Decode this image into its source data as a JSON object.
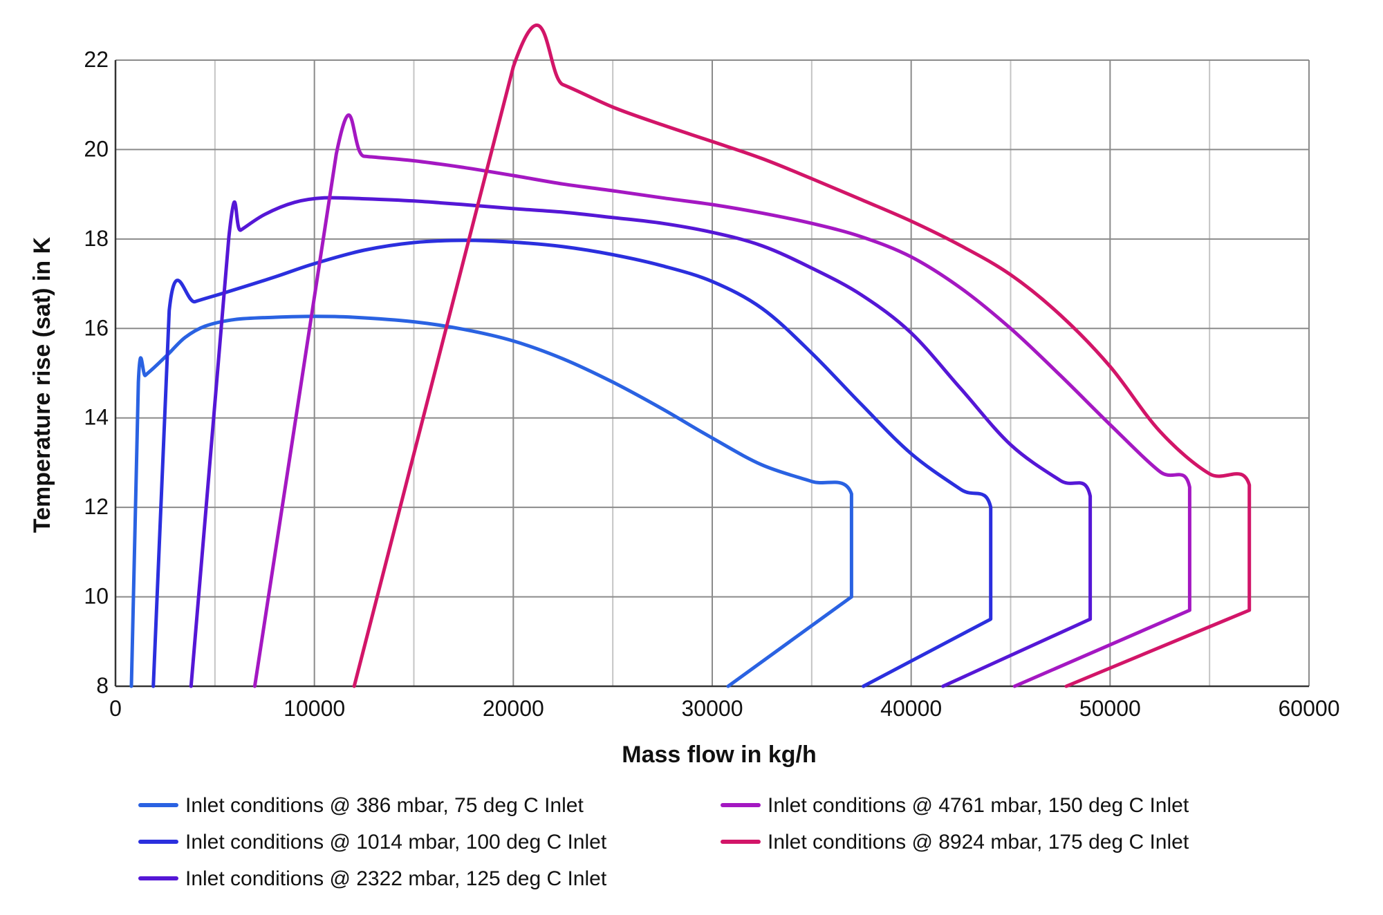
{
  "chart_data": {
    "type": "line",
    "title": "",
    "xlabel": "Mass flow in kg/h",
    "ylabel": "Temperature rise (sat) in K",
    "xlim": [
      0,
      60000
    ],
    "ylim": [
      8,
      22
    ],
    "x_ticks": [
      0,
      10000,
      20000,
      30000,
      40000,
      50000,
      60000
    ],
    "y_ticks": [
      8,
      10,
      12,
      14,
      16,
      18,
      20,
      22
    ],
    "x_minor_gridlines": [
      5000,
      15000,
      25000,
      35000,
      45000,
      55000
    ],
    "grid": true,
    "legend_placement": "bottom",
    "series": [
      {
        "name": "Inlet conditions @ 386 mbar, 75 deg C Inlet",
        "color": "#2a62e2",
        "points": [
          [
            800,
            8
          ],
          [
            1150,
            14.8
          ],
          [
            1500,
            14.95
          ],
          [
            2000,
            15.15
          ],
          [
            2700,
            15.45
          ],
          [
            3500,
            15.8
          ],
          [
            4500,
            16.05
          ],
          [
            6000,
            16.2
          ],
          [
            8000,
            16.25
          ],
          [
            10000,
            16.27
          ],
          [
            12000,
            16.25
          ],
          [
            15000,
            16.15
          ],
          [
            17500,
            15.98
          ],
          [
            20000,
            15.72
          ],
          [
            22500,
            15.32
          ],
          [
            25000,
            14.8
          ],
          [
            27500,
            14.2
          ],
          [
            30000,
            13.55
          ],
          [
            32500,
            12.95
          ],
          [
            35000,
            12.58
          ],
          [
            37000,
            12.3
          ],
          [
            37000,
            10
          ],
          [
            30800,
            8
          ]
        ]
      },
      {
        "name": "Inlet conditions @ 1014 mbar, 100 deg C Inlet",
        "color": "#2b2fde",
        "points": [
          [
            1900,
            8
          ],
          [
            2700,
            16.4
          ],
          [
            4000,
            16.6
          ],
          [
            5500,
            16.8
          ],
          [
            8000,
            17.15
          ],
          [
            10000,
            17.45
          ],
          [
            12500,
            17.75
          ],
          [
            15000,
            17.92
          ],
          [
            17500,
            17.97
          ],
          [
            20000,
            17.93
          ],
          [
            22500,
            17.83
          ],
          [
            25000,
            17.65
          ],
          [
            27500,
            17.4
          ],
          [
            30000,
            17.05
          ],
          [
            32500,
            16.45
          ],
          [
            35000,
            15.45
          ],
          [
            37500,
            14.3
          ],
          [
            40000,
            13.2
          ],
          [
            42500,
            12.4
          ],
          [
            44000,
            12.0
          ],
          [
            44000,
            9.5
          ],
          [
            37600,
            8
          ]
        ]
      },
      {
        "name": "Inlet conditions @ 2322 mbar, 125 deg C Inlet",
        "color": "#5517d6",
        "points": [
          [
            3800,
            8
          ],
          [
            5700,
            18.05
          ],
          [
            6300,
            18.2
          ],
          [
            7500,
            18.55
          ],
          [
            9000,
            18.82
          ],
          [
            10500,
            18.92
          ],
          [
            12500,
            18.9
          ],
          [
            15000,
            18.85
          ],
          [
            17500,
            18.77
          ],
          [
            20000,
            18.68
          ],
          [
            22500,
            18.6
          ],
          [
            25000,
            18.48
          ],
          [
            27500,
            18.35
          ],
          [
            30000,
            18.15
          ],
          [
            32500,
            17.85
          ],
          [
            35000,
            17.35
          ],
          [
            37500,
            16.75
          ],
          [
            40000,
            15.9
          ],
          [
            42500,
            14.65
          ],
          [
            45000,
            13.4
          ],
          [
            47500,
            12.6
          ],
          [
            49000,
            12.25
          ],
          [
            49000,
            9.5
          ],
          [
            41600,
            8
          ]
        ]
      },
      {
        "name": "Inlet conditions @ 4761 mbar, 150 deg C Inlet",
        "color": "#a418c2",
        "points": [
          [
            7000,
            8
          ],
          [
            11100,
            19.9
          ],
          [
            12500,
            19.85
          ],
          [
            15000,
            19.75
          ],
          [
            17500,
            19.6
          ],
          [
            20000,
            19.42
          ],
          [
            22500,
            19.23
          ],
          [
            25000,
            19.08
          ],
          [
            27500,
            18.92
          ],
          [
            30000,
            18.77
          ],
          [
            32500,
            18.58
          ],
          [
            35000,
            18.35
          ],
          [
            37500,
            18.05
          ],
          [
            40000,
            17.6
          ],
          [
            42500,
            16.9
          ],
          [
            45000,
            16.0
          ],
          [
            47500,
            14.95
          ],
          [
            50000,
            13.85
          ],
          [
            52500,
            12.8
          ],
          [
            54000,
            12.45
          ],
          [
            54000,
            9.7
          ],
          [
            45200,
            8
          ]
        ]
      },
      {
        "name": "Inlet conditions @ 8924 mbar, 175 deg C Inlet",
        "color": "#d21568",
        "points": [
          [
            12000,
            8
          ],
          [
            20000,
            21.85
          ],
          [
            22500,
            21.45
          ],
          [
            25000,
            20.95
          ],
          [
            27500,
            20.55
          ],
          [
            30000,
            20.18
          ],
          [
            32500,
            19.8
          ],
          [
            35000,
            19.35
          ],
          [
            37500,
            18.88
          ],
          [
            40000,
            18.4
          ],
          [
            42500,
            17.85
          ],
          [
            45000,
            17.2
          ],
          [
            47500,
            16.3
          ],
          [
            50000,
            15.15
          ],
          [
            52500,
            13.7
          ],
          [
            55000,
            12.75
          ],
          [
            57000,
            12.5
          ],
          [
            57000,
            9.7
          ],
          [
            47800,
            8
          ]
        ]
      }
    ]
  }
}
